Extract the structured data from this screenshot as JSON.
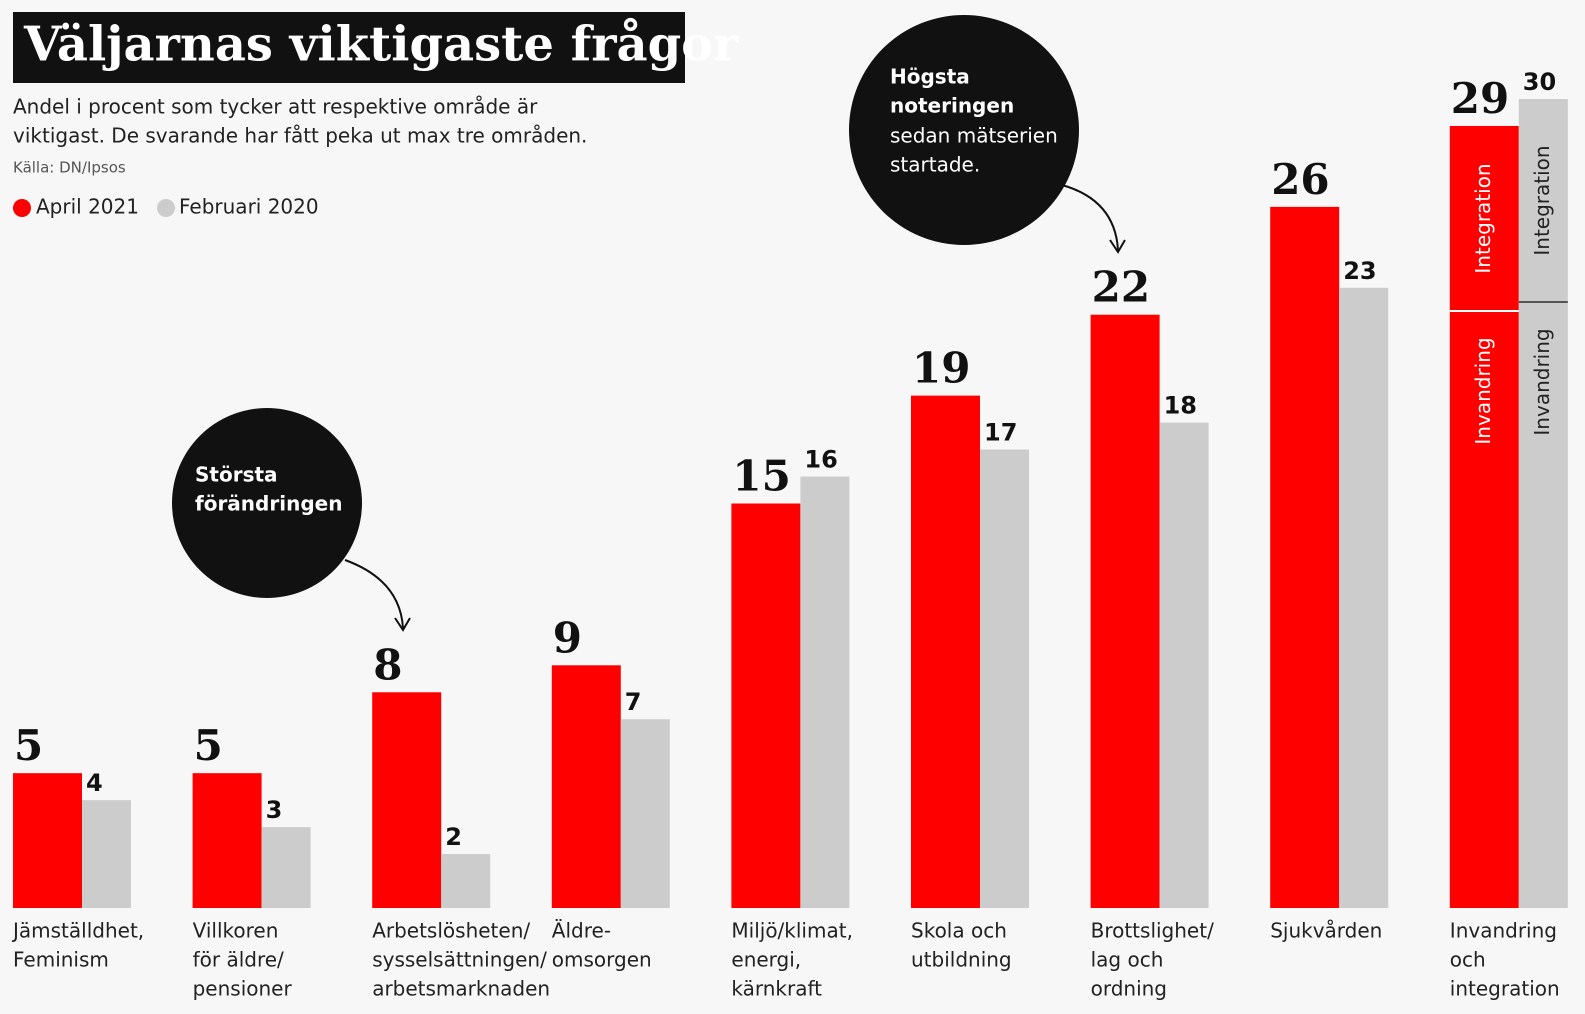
{
  "chart_data": {
    "type": "bar",
    "title": "Väljarnas viktigaste frågor",
    "subtitle": [
      "Andel i procent som tycker att respektive område är",
      "viktigast. De svarande har fått peka ut max tre områden."
    ],
    "source": "Källa: DN/Ipsos",
    "categories": [
      [
        "Jämställdhet,",
        "Feminism"
      ],
      [
        "Villkoren",
        "för äldre/",
        "pensioner"
      ],
      [
        "Arbetslösheten/",
        "sysselsättningen/",
        "arbetsmarknaden"
      ],
      [
        "Äldre-",
        "omsorgen"
      ],
      [
        "Miljö/klimat,",
        "energi,",
        "kärnkraft"
      ],
      [
        "Skola och",
        "utbildning"
      ],
      [
        "Brottslighet/",
        "lag och",
        "ordning"
      ],
      [
        "Sjukvården"
      ],
      [
        "Invandring",
        "och",
        "integration"
      ]
    ],
    "series": [
      {
        "name": "April 2021",
        "color": "#ff0000",
        "values": [
          5,
          5,
          8,
          9,
          15,
          19,
          22,
          26,
          29
        ]
      },
      {
        "name": "Februari 2020",
        "color": "#cccccc",
        "values": [
          4,
          3,
          2,
          7,
          16,
          17,
          18,
          23,
          30
        ]
      }
    ],
    "ylim": [
      0,
      30
    ],
    "bar_inner_labels": [
      "Integration",
      "Invandring"
    ],
    "annotations": [
      [
        "Största",
        "förändringen"
      ],
      [
        "Högsta",
        "noteringen",
        "sedan mätserien",
        "startade."
      ]
    ]
  }
}
